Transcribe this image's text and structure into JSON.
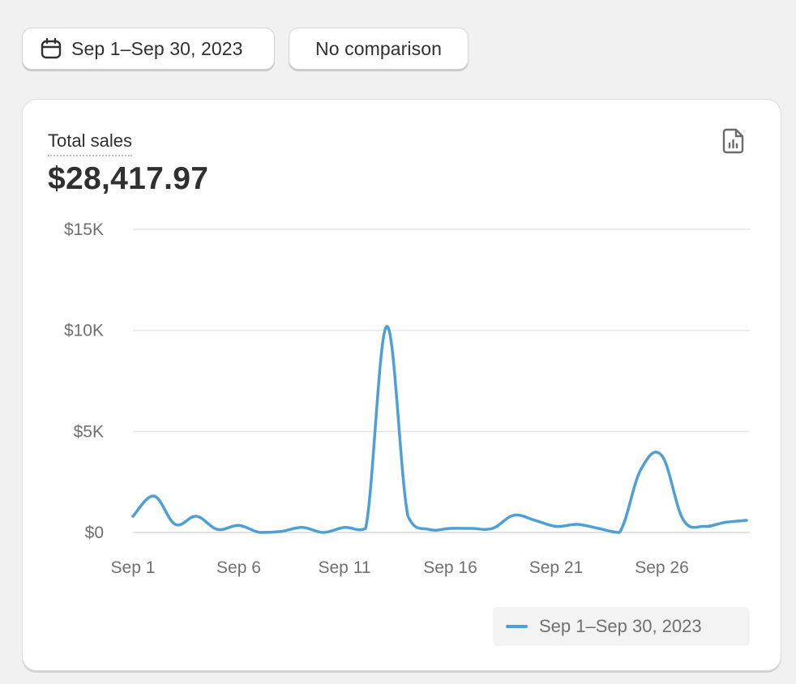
{
  "toolbar": {
    "date_range_label": "Sep 1–Sep 30, 2023",
    "date_icon": "calendar-icon",
    "comparison_label": "No comparison"
  },
  "card": {
    "metric_title": "Total sales",
    "metric_value": "$28,417.97",
    "export_icon": "report-icon"
  },
  "colors": {
    "series": "#4e9fd5",
    "page_bg": "#f1f1f1",
    "card_bg": "#ffffff",
    "grid": "#e6e6e6"
  },
  "chart_data": {
    "type": "line",
    "title": "",
    "xlabel": "",
    "ylabel": "",
    "ylim": [
      0,
      15000
    ],
    "yticks": [
      0,
      5000,
      10000,
      15000
    ],
    "ytick_labels": [
      "$0",
      "$5K",
      "$10K",
      "$15K"
    ],
    "xtick_labels": [
      "Sep 1",
      "Sep 6",
      "Sep 11",
      "Sep 16",
      "Sep 21",
      "Sep 26"
    ],
    "grid": true,
    "legend": "bottom-right",
    "x": [
      "Sep 1",
      "Sep 2",
      "Sep 3",
      "Sep 4",
      "Sep 5",
      "Sep 6",
      "Sep 7",
      "Sep 8",
      "Sep 9",
      "Sep 10",
      "Sep 11",
      "Sep 12",
      "Sep 13",
      "Sep 14",
      "Sep 15",
      "Sep 16",
      "Sep 17",
      "Sep 18",
      "Sep 19",
      "Sep 20",
      "Sep 21",
      "Sep 22",
      "Sep 23",
      "Sep 24",
      "Sep 25",
      "Sep 26",
      "Sep 27",
      "Sep 28",
      "Sep 29",
      "Sep 30"
    ],
    "series": [
      {
        "name": "Sep 1–Sep 30, 2023",
        "values": [
          800,
          1800,
          400,
          800,
          150,
          350,
          0,
          50,
          250,
          0,
          250,
          200,
          10200,
          800,
          150,
          200,
          200,
          200,
          850,
          600,
          300,
          400,
          200,
          0,
          3100,
          3800,
          650,
          300,
          500,
          600
        ]
      }
    ]
  }
}
